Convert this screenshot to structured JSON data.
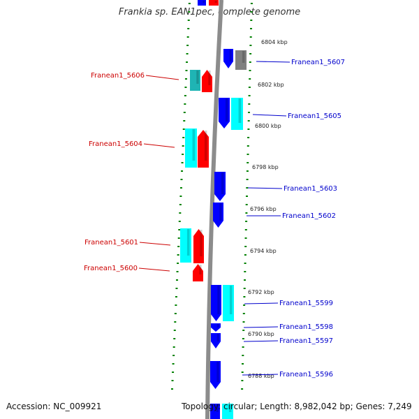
{
  "title": "Frankia sp. EAN1pec, complete genome",
  "footer": {
    "accession": "Accession: NC_009921",
    "summary": "Topology: circular; Length: 8,982,042 bp; Genes: 7,249"
  },
  "colors": {
    "forward_strand": "#ff0000",
    "reverse_strand": "#0000ff",
    "teal": "#1fb4b4",
    "cyan": "#00ffff",
    "gray": "#808080",
    "backbone": "#8c8c8c",
    "ruler_dots": "#008000",
    "left_label": "#cc0000",
    "right_label": "#0000cc"
  },
  "ruler_ticks": [
    "6804 kbp",
    "6802 kbp",
    "6800 kbp",
    "6798 kbp",
    "6796 kbp",
    "6794 kbp",
    "6792 kbp",
    "6790 kbp",
    "6788 kbp"
  ],
  "left_genes": [
    {
      "label": "Franean1_5606"
    },
    {
      "label": "Franean1_5604"
    },
    {
      "label": "Franean1_5601"
    },
    {
      "label": "Franean1_5600"
    }
  ],
  "right_genes": [
    {
      "label": "Franean1_5607"
    },
    {
      "label": "Franean1_5605"
    },
    {
      "label": "Franean1_5603"
    },
    {
      "label": "Franean1_5602"
    },
    {
      "label": "Franean1_5599"
    },
    {
      "label": "Franean1_5598"
    },
    {
      "label": "Franean1_5597"
    },
    {
      "label": "Franean1_5596"
    }
  ]
}
